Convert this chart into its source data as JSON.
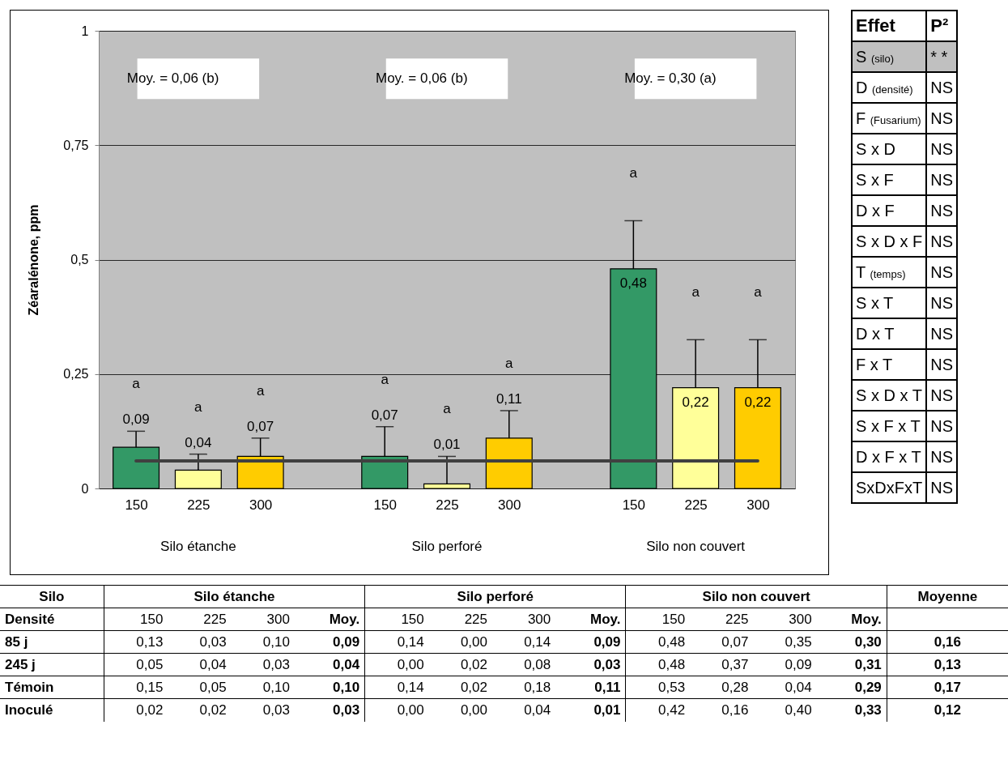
{
  "chart_data": [
    {
      "type": "bar",
      "ylabel": "Zéaralénone, ppm",
      "categories": [
        "150",
        "225",
        "300",
        "150",
        "225",
        "300",
        "150",
        "225",
        "300"
      ],
      "values": [
        0.09,
        0.04,
        0.07,
        0.07,
        0.01,
        0.11,
        0.48,
        0.22,
        0.22
      ],
      "colors": [
        "#339966",
        "#ffff99",
        "#ffcc00",
        "#339966",
        "#ffff99",
        "#ffcc00",
        "#339966",
        "#ffff99",
        "#ffcc00"
      ],
      "errors": [
        [
          0.09,
          0.125
        ],
        [
          0.04,
          0.075
        ],
        [
          0.07,
          0.11
        ],
        [
          0.07,
          0.135
        ],
        [
          0.01,
          0.07
        ],
        [
          0.11,
          0.17
        ],
        [
          0.48,
          0.585
        ],
        [
          0.22,
          0.325
        ],
        [
          0.22,
          0.325
        ]
      ],
      "value_labels": [
        "0,09",
        "0,04",
        "0,07",
        "0,07",
        "0,01",
        "0,11",
        "0,48",
        "0,22",
        "0,22"
      ],
      "ylim": [
        0,
        1
      ],
      "yticks": [
        0,
        {
          "value": 0.25,
          "label": "0,25"
        },
        {
          "value": 0.5,
          "label": "0,5"
        },
        {
          "value": 0.75,
          "label": "0,75"
        },
        1
      ],
      "grid": "y",
      "ref_lines": [
        {
          "axis": "y",
          "value": 0.06,
          "color": "#404040"
        }
      ],
      "annotations": [
        "Silo étanche",
        "Silo perforé",
        "Silo non couvert",
        "Moy. = 0,06 (b)",
        "Moy. = 0,06 (b)",
        "Moy. = 0,30 (a)",
        "a",
        "a",
        "a",
        "a",
        "a",
        "a",
        "a",
        "a",
        "a"
      ]
    },
    {
      "type": "other",
      "categories": [
        "Effet",
        "P²"
      ],
      "y_categories": [
        "S (silo)",
        "D (densité)",
        "F (Fusarium)",
        "S x D",
        "S x F",
        "D x F",
        "S x D x F",
        "T (temps)",
        "S x T",
        "D x T",
        "F x T",
        "S x D x T",
        "S x F x T",
        "D x F x T",
        "SxDxFxT"
      ],
      "cell_labels": [
        [
          "* *"
        ],
        [
          "NS"
        ],
        [
          "NS"
        ],
        [
          "NS"
        ],
        [
          "NS"
        ],
        [
          "NS"
        ],
        [
          "NS"
        ],
        [
          "NS"
        ],
        [
          "NS"
        ],
        [
          "NS"
        ],
        [
          "NS"
        ],
        [
          "NS"
        ],
        [
          "NS"
        ],
        [
          "NS"
        ],
        [
          "NS"
        ]
      ]
    },
    {
      "type": "other",
      "ylabel": "Silo",
      "xlabel": "Densité",
      "annotations": [
        "Silo étanche",
        "Silo perforé",
        "Silo non couvert",
        "Moyenne"
      ],
      "categories": [
        "150",
        "225",
        "300",
        "Moy.",
        "150",
        "225",
        "300",
        "Moy.",
        "150",
        "225",
        "300",
        "Moy.",
        null
      ],
      "y_categories": [
        "85 j",
        "245 j",
        "Témoin",
        "Inoculé"
      ],
      "cell_labels": [
        [
          "0,13",
          "0,03",
          "0,10",
          "0,09",
          "0,14",
          "0,00",
          "0,14",
          "0,09",
          "0,48",
          "0,07",
          "0,35",
          "0,30",
          "0,16"
        ],
        [
          "0,05",
          "0,04",
          "0,03",
          "0,04",
          "0,00",
          "0,02",
          "0,08",
          "0,03",
          "0,48",
          "0,37",
          "0,09",
          "0,31",
          "0,13"
        ],
        [
          "0,15",
          "0,05",
          "0,10",
          "0,10",
          "0,14",
          "0,02",
          "0,18",
          "0,11",
          "0,53",
          "0,28",
          "0,04",
          "0,29",
          "0,17"
        ],
        [
          "0,02",
          "0,02",
          "0,03",
          "0,03",
          "0,00",
          "0,00",
          "0,04",
          "0,01",
          "0,42",
          "0,16",
          "0,40",
          "0,33",
          "0,12"
        ]
      ]
    }
  ]
}
